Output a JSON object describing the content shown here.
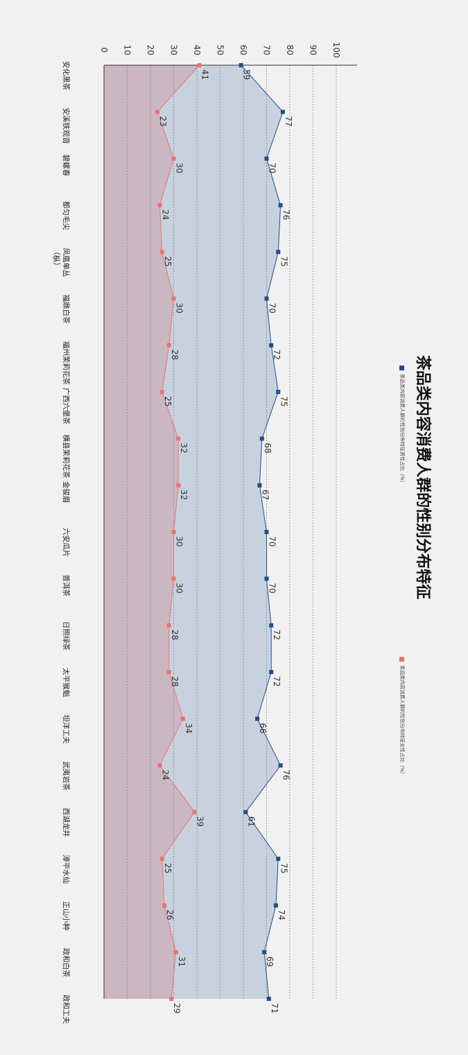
{
  "chart_data": {
    "type": "area",
    "orientation": "rotated-90",
    "title": "茶品类内容消费人群的性别分布特征",
    "categories": [
      "安化黑茶",
      "安溪铁观音",
      "碧螺春",
      "都匀毛尖",
      "凤凰单丛（枞）",
      "福鼎白茶",
      "福州茉莉花茶",
      "广西六堡茶",
      "横县茉莉花茶",
      "金骏眉",
      "六安瓜片",
      "普洱茶",
      "日照绿茶",
      "太平猴魁",
      "坦洋工夫",
      "武夷岩茶",
      "西湖龙井",
      "漳平水仙",
      "正山小种",
      "政和白茶",
      "政和工夫"
    ],
    "series": [
      {
        "name": "茶品类内容消费人群的性别分布特征男性占比（%）",
        "color": "#1f4e8c",
        "fill": "#c5d0dc",
        "values": [
          59,
          77,
          70,
          76,
          75,
          70,
          72,
          75,
          68,
          67,
          70,
          70,
          72,
          72,
          66,
          76,
          61,
          75,
          74,
          69,
          71
        ]
      },
      {
        "name": "茶品类内容消费人群的性别分布特征女性占比（%）",
        "color": "#f07070",
        "fill": "#cbb5bf",
        "values": [
          41,
          23,
          30,
          24,
          25,
          30,
          28,
          25,
          32,
          32,
          30,
          30,
          28,
          28,
          34,
          24,
          39,
          25,
          26,
          31,
          29
        ]
      }
    ],
    "value_axis": {
      "min": 0,
      "max": 100,
      "ticks": [
        0,
        10,
        20,
        30,
        40,
        50,
        60,
        70,
        80,
        90,
        100
      ]
    },
    "grid": true,
    "legend": "right"
  }
}
